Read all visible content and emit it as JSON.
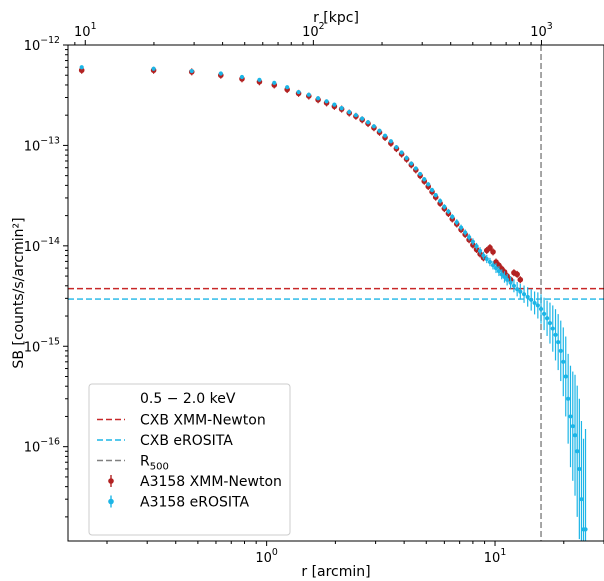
{
  "chart_data": {
    "type": "scatter",
    "title": "",
    "xlabel": "r [arcmin]",
    "ylabel": "SB [counts/s/arcmin²]",
    "top_xlabel": "r [kpc]",
    "x_scale": "log",
    "y_scale": "log",
    "xlim": [
      0.135,
      30
    ],
    "ylim": [
      1.15e-17,
      1e-12
    ],
    "top_xlim_kpc": [
      8.4,
      1880
    ],
    "x_ticks": [
      {
        "value": 1,
        "label": "10^0"
      },
      {
        "value": 10,
        "label": "10^1"
      }
    ],
    "top_x_ticks": [
      {
        "value": 10,
        "label": "10^1"
      },
      {
        "value": 100,
        "label": "10^2"
      },
      {
        "value": 1000,
        "label": "10^3"
      }
    ],
    "y_ticks": [
      {
        "value": 1e-12,
        "label": "10^-12"
      },
      {
        "value": 1e-13,
        "label": "10^-13"
      },
      {
        "value": 1e-14,
        "label": "10^-14"
      },
      {
        "value": 1e-15,
        "label": "10^-15"
      },
      {
        "value": 1e-16,
        "label": "10^-16"
      }
    ],
    "grid": false,
    "legend_position": "lower-left",
    "legend_title": "0.5 − 2.0 keV",
    "series": [
      {
        "name": "A3158 XMM-Newton",
        "kind": "errorbar",
        "color": "#b22222",
        "x": [
          0.155,
          0.32,
          0.47,
          0.63,
          0.78,
          0.93,
          1.08,
          1.23,
          1.38,
          1.53,
          1.68,
          1.83,
          1.98,
          2.13,
          2.3,
          2.46,
          2.62,
          2.78,
          2.95,
          3.12,
          3.3,
          3.5,
          3.7,
          3.9,
          4.1,
          4.3,
          4.5,
          4.7,
          4.9,
          5.1,
          5.3,
          5.5,
          5.75,
          6.0,
          6.25,
          6.5,
          6.8,
          7.1,
          7.4,
          7.7,
          8.0,
          8.3,
          8.6,
          8.9,
          9.2,
          9.5,
          9.8,
          10.1,
          10.4,
          10.7,
          11.0,
          11.3,
          11.7,
          12.1,
          12.5,
          12.9
        ],
        "y": [
          5.6e-13,
          5.6e-13,
          5.4e-13,
          5e-13,
          4.6e-13,
          4.3e-13,
          4e-13,
          3.6e-13,
          3.3e-13,
          3.1e-13,
          2.85e-13,
          2.65e-13,
          2.45e-13,
          2.3e-13,
          2.1e-13,
          1.95e-13,
          1.8e-13,
          1.65e-13,
          1.5e-13,
          1.35e-13,
          1.2e-13,
          1.05e-13,
          9.3e-14,
          8.2e-14,
          7.3e-14,
          6.4e-14,
          5.7e-14,
          5e-14,
          4.4e-14,
          3.9e-14,
          3.45e-14,
          3.05e-14,
          2.65e-14,
          2.35e-14,
          2.1e-14,
          1.85e-14,
          1.65e-14,
          1.45e-14,
          1.3e-14,
          1.15e-14,
          1.02e-14,
          9.2e-15,
          8.3e-15,
          7.6e-15,
          9e-15,
          9.6e-15,
          8.7e-15,
          6.9e-15,
          6.4e-15,
          5.9e-15,
          5.5e-15,
          5e-15,
          4.6e-15,
          5.4e-15,
          5.2e-15,
          4.6e-15
        ]
      },
      {
        "name": "A3158 eROSITA",
        "kind": "errorbar",
        "color": "#1cb5e6",
        "x": [
          0.155,
          0.32,
          0.47,
          0.63,
          0.78,
          0.93,
          1.08,
          1.23,
          1.38,
          1.53,
          1.68,
          1.83,
          1.98,
          2.13,
          2.3,
          2.46,
          2.62,
          2.78,
          2.95,
          3.12,
          3.3,
          3.5,
          3.7,
          3.9,
          4.1,
          4.3,
          4.5,
          4.7,
          4.9,
          5.1,
          5.3,
          5.5,
          5.75,
          6.0,
          6.25,
          6.5,
          6.8,
          7.1,
          7.4,
          7.7,
          8.0,
          8.3,
          8.6,
          8.9,
          9.2,
          9.5,
          9.8,
          10.1,
          10.4,
          10.7,
          11.0,
          11.3,
          11.7,
          12.1,
          12.5,
          12.9,
          13.4,
          13.9,
          14.4,
          14.9,
          15.4,
          15.9,
          16.4,
          16.9,
          17.4,
          17.9,
          18.4,
          18.9,
          19.4,
          19.9,
          20.4,
          20.9,
          21.4,
          21.9,
          22.4,
          22.9,
          23.4,
          23.9,
          24.4,
          24.9
        ],
        "y": [
          6e-13,
          5.8e-13,
          5.5e-13,
          5.2e-13,
          4.8e-13,
          4.5e-13,
          4.2e-13,
          3.8e-13,
          3.4e-13,
          3.2e-13,
          2.95e-13,
          2.75e-13,
          2.55e-13,
          2.35e-13,
          2.15e-13,
          2e-13,
          1.85e-13,
          1.7e-13,
          1.55e-13,
          1.4e-13,
          1.25e-13,
          1.1e-13,
          9.6e-14,
          8.5e-14,
          7.5e-14,
          6.6e-14,
          5.9e-14,
          5.2e-14,
          4.6e-14,
          4.1e-14,
          3.6e-14,
          3.2e-14,
          2.8e-14,
          2.45e-14,
          2.2e-14,
          1.95e-14,
          1.72e-14,
          1.52e-14,
          1.36e-14,
          1.22e-14,
          1.1e-14,
          9.9e-15,
          8.9e-15,
          8e-15,
          7.4e-15,
          6.9e-15,
          6.4e-15,
          6e-15,
          5.6e-15,
          5.2e-15,
          4.9e-15,
          4.6e-15,
          4.3e-15,
          4e-15,
          3.7e-15,
          3.5e-15,
          3.3e-15,
          3.1e-15,
          2.9e-15,
          2.7e-15,
          2.55e-15,
          2.35e-15,
          2.1e-15,
          1.9e-15,
          1.7e-15,
          1.5e-15,
          1.3e-15,
          1.1e-15,
          9e-16,
          7e-16,
          5e-16,
          3e-16,
          2e-16,
          1.6e-16,
          1.3e-16,
          9e-17,
          6e-17,
          3e-17,
          1.5e-17,
          1.5e-17
        ],
        "yerr_factor": [
          1.03,
          1.03,
          1.03,
          1.03,
          1.03,
          1.03,
          1.03,
          1.03,
          1.03,
          1.03,
          1.03,
          1.03,
          1.03,
          1.03,
          1.03,
          1.03,
          1.03,
          1.03,
          1.03,
          1.03,
          1.03,
          1.03,
          1.03,
          1.03,
          1.04,
          1.04,
          1.04,
          1.04,
          1.05,
          1.05,
          1.05,
          1.05,
          1.06,
          1.06,
          1.06,
          1.06,
          1.07,
          1.07,
          1.07,
          1.08,
          1.08,
          1.08,
          1.09,
          1.09,
          1.1,
          1.1,
          1.1,
          1.12,
          1.12,
          1.12,
          1.14,
          1.14,
          1.15,
          1.16,
          1.18,
          1.2,
          1.22,
          1.25,
          1.28,
          1.3,
          1.35,
          1.4,
          1.45,
          1.5,
          1.6,
          1.7,
          1.8,
          1.9,
          2.0,
          2.2,
          2.5,
          2.8,
          3.2,
          3.5,
          4.0,
          4.5,
          5.0,
          6.0,
          8.0,
          10.0
        ]
      }
    ],
    "reference_lines": [
      {
        "name": "CXB XMM-Newton",
        "orientation": "horizontal",
        "value": 3.75e-15,
        "color": "#c82828",
        "style": "dashed"
      },
      {
        "name": "CXB eROSITA",
        "orientation": "horizontal",
        "value": 2.95e-15,
        "color": "#1cb5e6",
        "style": "dashed"
      },
      {
        "name": "R500",
        "orientation": "vertical",
        "value": 15.9,
        "color": "#808080",
        "style": "dashed"
      }
    ]
  }
}
